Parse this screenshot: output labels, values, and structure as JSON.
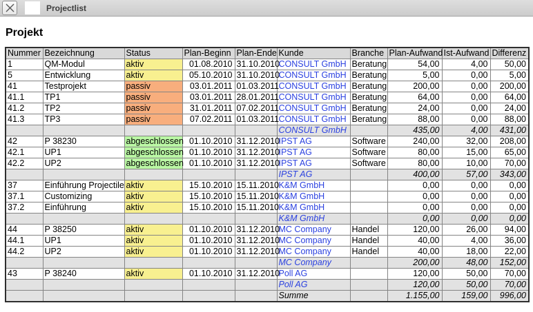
{
  "window": {
    "tab_title": "Projectlist",
    "icons": {
      "close": "close-x",
      "tab": "blank-document"
    }
  },
  "page": {
    "heading": "Projekt"
  },
  "table": {
    "columns": [
      "Nummer",
      "Bezeichnung",
      "Status",
      "Plan-Beginn",
      "Plan-Ende",
      "Kunde",
      "Branche",
      "Plan-Aufwand",
      "Ist-Aufwand",
      "Differenz"
    ],
    "status_colors": {
      "aktiv": "#f8f090",
      "passiv": "#f8ae7d",
      "abgeschlossen": "#baf7a4"
    },
    "link_color": "#2b41e0",
    "rows": [
      {
        "type": "data",
        "nummer": "1",
        "bezeichnung": "QM-Modul",
        "status": "aktiv",
        "plan_beginn": "01.08.2010",
        "plan_ende": "31.10.2010",
        "kunde": "CONSULT GmbH",
        "branche": "Beratung",
        "plan_aufwand": "54,00",
        "ist_aufwand": "4,00",
        "differenz": "50,00"
      },
      {
        "type": "data",
        "nummer": "5",
        "bezeichnung": "Entwicklung",
        "status": "aktiv",
        "plan_beginn": "05.10.2010",
        "plan_ende": "31.10.2010",
        "kunde": "CONSULT GmbH",
        "branche": "Beratung",
        "plan_aufwand": "5,00",
        "ist_aufwand": "0,00",
        "differenz": "5,00"
      },
      {
        "type": "data",
        "nummer": "41",
        "bezeichnung": "Testprojekt",
        "status": "passiv",
        "plan_beginn": "03.01.2011",
        "plan_ende": "01.03.2011",
        "kunde": "CONSULT GmbH",
        "branche": "Beratung",
        "plan_aufwand": "200,00",
        "ist_aufwand": "0,00",
        "differenz": "200,00"
      },
      {
        "type": "data",
        "nummer": "41.1",
        "bezeichnung": "TP1",
        "status": "passiv",
        "plan_beginn": "03.01.2011",
        "plan_ende": "28.01.2011",
        "kunde": "CONSULT GmbH",
        "branche": "Beratung",
        "plan_aufwand": "64,00",
        "ist_aufwand": "0,00",
        "differenz": "64,00"
      },
      {
        "type": "data",
        "nummer": "41.2",
        "bezeichnung": "TP2",
        "status": "passiv",
        "plan_beginn": "31.01.2011",
        "plan_ende": "07.02.2011",
        "kunde": "CONSULT GmbH",
        "branche": "Beratung",
        "plan_aufwand": "24,00",
        "ist_aufwand": "0,00",
        "differenz": "24,00"
      },
      {
        "type": "data",
        "nummer": "41.3",
        "bezeichnung": "TP3",
        "status": "passiv",
        "plan_beginn": "07.02.2011",
        "plan_ende": "01.03.2011",
        "kunde": "CONSULT GmbH",
        "branche": "Beratung",
        "plan_aufwand": "88,00",
        "ist_aufwand": "0,00",
        "differenz": "88,00"
      },
      {
        "type": "subtotal",
        "kunde": "CONSULT GmbH",
        "plan_aufwand": "435,00",
        "ist_aufwand": "4,00",
        "differenz": "431,00"
      },
      {
        "type": "data",
        "nummer": "42",
        "bezeichnung": "P 38230",
        "status": "abgeschlossen",
        "plan_beginn": "01.10.2010",
        "plan_ende": "31.12.2010",
        "kunde": "IPST AG",
        "branche": "Software",
        "plan_aufwand": "240,00",
        "ist_aufwand": "32,00",
        "differenz": "208,00"
      },
      {
        "type": "data",
        "nummer": "42.1",
        "bezeichnung": "UP1",
        "status": "abgeschlossen",
        "plan_beginn": "01.10.2010",
        "plan_ende": "31.12.2010",
        "kunde": "IPST AG",
        "branche": "Software",
        "plan_aufwand": "80,00",
        "ist_aufwand": "15,00",
        "differenz": "65,00"
      },
      {
        "type": "data",
        "nummer": "42.2",
        "bezeichnung": "UP2",
        "status": "abgeschlossen",
        "plan_beginn": "01.10.2010",
        "plan_ende": "31.12.2010",
        "kunde": "IPST AG",
        "branche": "Software",
        "plan_aufwand": "80,00",
        "ist_aufwand": "10,00",
        "differenz": "70,00"
      },
      {
        "type": "subtotal",
        "kunde": "IPST AG",
        "plan_aufwand": "400,00",
        "ist_aufwand": "57,00",
        "differenz": "343,00"
      },
      {
        "type": "data",
        "nummer": "37",
        "bezeichnung": "Einführung Projectile",
        "status": "aktiv",
        "plan_beginn": "15.10.2010",
        "plan_ende": "15.11.2010",
        "kunde": "K&M GmbH",
        "branche": "",
        "plan_aufwand": "0,00",
        "ist_aufwand": "0,00",
        "differenz": "0,00"
      },
      {
        "type": "data",
        "nummer": "37.1",
        "bezeichnung": "Customizing",
        "status": "aktiv",
        "plan_beginn": "15.10.2010",
        "plan_ende": "15.11.2010",
        "kunde": "K&M GmbH",
        "branche": "",
        "plan_aufwand": "0,00",
        "ist_aufwand": "0,00",
        "differenz": "0,00"
      },
      {
        "type": "data",
        "nummer": "37.2",
        "bezeichnung": "Einführung",
        "status": "aktiv",
        "plan_beginn": "15.10.2010",
        "plan_ende": "15.11.2010",
        "kunde": "K&M GmbH",
        "branche": "",
        "plan_aufwand": "0,00",
        "ist_aufwand": "0,00",
        "differenz": "0,00"
      },
      {
        "type": "subtotal",
        "kunde": "K&M GmbH",
        "plan_aufwand": "0,00",
        "ist_aufwand": "0,00",
        "differenz": "0,00"
      },
      {
        "type": "data",
        "nummer": "44",
        "bezeichnung": "P 38250",
        "status": "aktiv",
        "plan_beginn": "01.10.2010",
        "plan_ende": "31.12.2010",
        "kunde": "MC Company",
        "branche": "Handel",
        "plan_aufwand": "120,00",
        "ist_aufwand": "26,00",
        "differenz": "94,00"
      },
      {
        "type": "data",
        "nummer": "44.1",
        "bezeichnung": "UP1",
        "status": "aktiv",
        "plan_beginn": "01.10.2010",
        "plan_ende": "31.12.2010",
        "kunde": "MC Company",
        "branche": "Handel",
        "plan_aufwand": "40,00",
        "ist_aufwand": "4,00",
        "differenz": "36,00"
      },
      {
        "type": "data",
        "nummer": "44.2",
        "bezeichnung": "UP2",
        "status": "aktiv",
        "plan_beginn": "01.10.2010",
        "plan_ende": "31.12.2010",
        "kunde": "MC Company",
        "branche": "Handel",
        "plan_aufwand": "40,00",
        "ist_aufwand": "18,00",
        "differenz": "22,00"
      },
      {
        "type": "subtotal",
        "kunde": "MC Company",
        "plan_aufwand": "200,00",
        "ist_aufwand": "48,00",
        "differenz": "152,00"
      },
      {
        "type": "data",
        "nummer": "43",
        "bezeichnung": "P 38240",
        "status": "aktiv",
        "plan_beginn": "01.10.2010",
        "plan_ende": "31.12.2010",
        "kunde": "Poll AG",
        "branche": "",
        "plan_aufwand": "120,00",
        "ist_aufwand": "50,00",
        "differenz": "70,00"
      },
      {
        "type": "subtotal",
        "kunde": "Poll AG",
        "plan_aufwand": "120,00",
        "ist_aufwand": "50,00",
        "differenz": "70,00"
      },
      {
        "type": "total",
        "label": "Summe",
        "plan_aufwand": "1.155,00",
        "ist_aufwand": "159,00",
        "differenz": "996,00"
      }
    ]
  }
}
